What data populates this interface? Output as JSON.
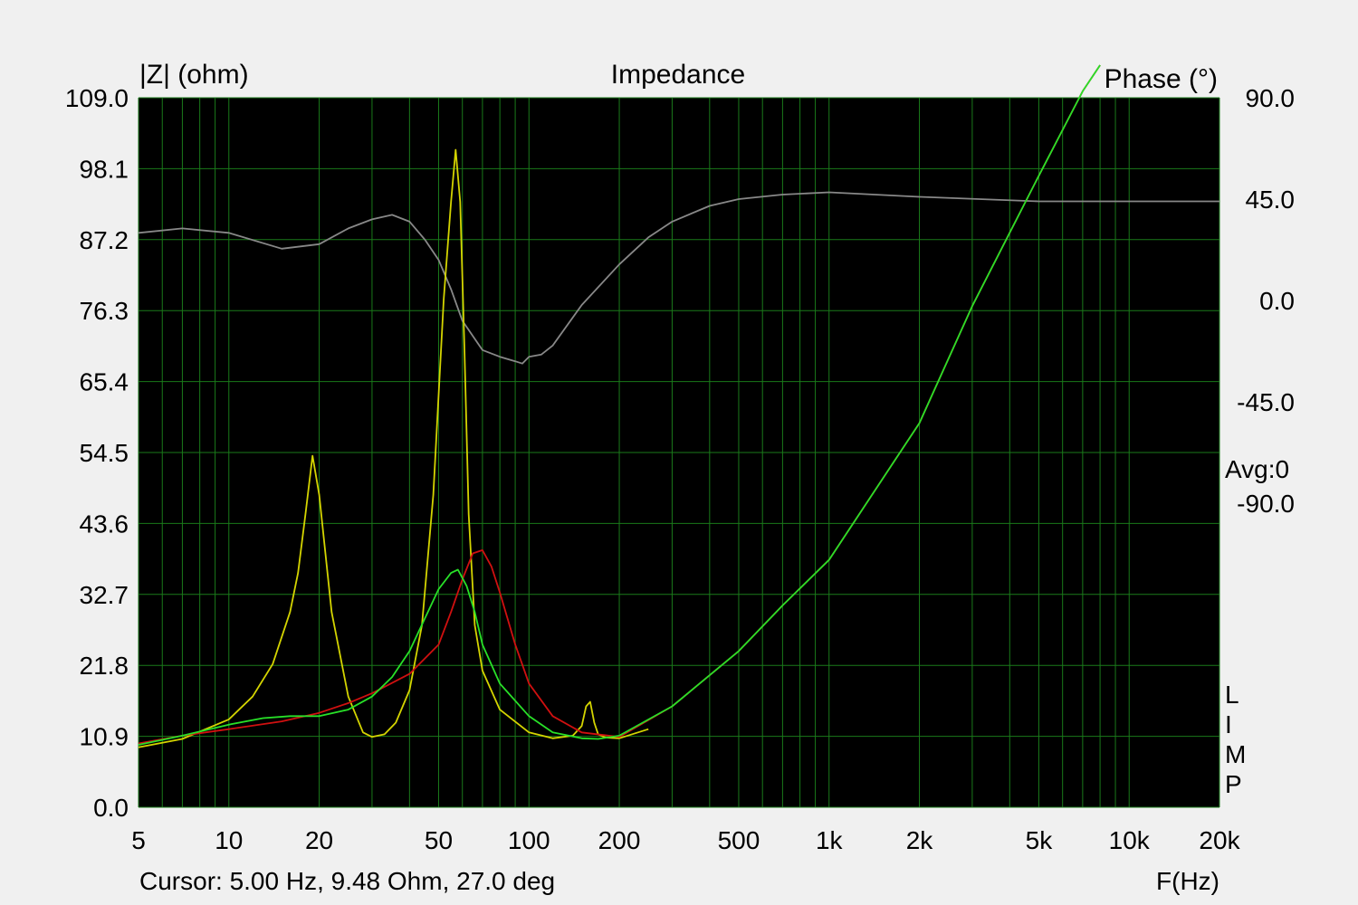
{
  "chart_data": {
    "type": "line",
    "title": "Impedance",
    "ylabel": "|Z| (ohm)",
    "ylabel_right": "Phase (°)",
    "xlabel": "F(Hz)",
    "x_scale": "log",
    "xlim": [
      5,
      20000
    ],
    "ylim": [
      0,
      109
    ],
    "ylim_right": [
      -225,
      90
    ],
    "grid": true,
    "background": "#000000",
    "grid_color": "#1a7a1a",
    "x_ticks": [
      {
        "v": 5,
        "label": "5"
      },
      {
        "v": 10,
        "label": "10"
      },
      {
        "v": 20,
        "label": "20"
      },
      {
        "v": 50,
        "label": "50"
      },
      {
        "v": 100,
        "label": "100"
      },
      {
        "v": 200,
        "label": "200"
      },
      {
        "v": 500,
        "label": "500"
      },
      {
        "v": 1000,
        "label": "1k"
      },
      {
        "v": 2000,
        "label": "2k"
      },
      {
        "v": 5000,
        "label": "5k"
      },
      {
        "v": 10000,
        "label": "10k"
      },
      {
        "v": 20000,
        "label": "20k"
      }
    ],
    "y_ticks": [
      {
        "v": 0.0,
        "label": "0.0"
      },
      {
        "v": 10.9,
        "label": "10.9"
      },
      {
        "v": 21.8,
        "label": "21.8"
      },
      {
        "v": 32.7,
        "label": "32.7"
      },
      {
        "v": 43.6,
        "label": "43.6"
      },
      {
        "v": 54.5,
        "label": "54.5"
      },
      {
        "v": 65.4,
        "label": "65.4"
      },
      {
        "v": 76.3,
        "label": "76.3"
      },
      {
        "v": 87.2,
        "label": "87.2"
      },
      {
        "v": 98.1,
        "label": "98.1"
      },
      {
        "v": 109.0,
        "label": "109.0"
      }
    ],
    "y_ticks_right": [
      {
        "v": 90,
        "label": "90.0"
      },
      {
        "v": 45,
        "label": "45.0"
      },
      {
        "v": 0,
        "label": "0.0"
      },
      {
        "v": -45,
        "label": "-45.0"
      },
      {
        "v": -90,
        "label": "-90.0"
      }
    ],
    "avg_label": "Avg:0",
    "side_letters": [
      "L",
      "I",
      "M",
      "P"
    ],
    "status": "Cursor: 5.00 Hz, 9.48 Ohm, 27.0 deg",
    "series": [
      {
        "color": "#888888",
        "axis": "right",
        "x": [
          5,
          7,
          10,
          15,
          20,
          25,
          30,
          35,
          40,
          45,
          50,
          55,
          60,
          70,
          80,
          90,
          95,
          100,
          110,
          120,
          150,
          200,
          250,
          300,
          400,
          500,
          700,
          1000,
          2000,
          5000,
          10000,
          20000
        ],
        "y": [
          30,
          32,
          30,
          23,
          25,
          32,
          36,
          38,
          35,
          27,
          18,
          5,
          -9,
          -22,
          -25,
          -27,
          -28,
          -25,
          -24,
          -20,
          -2,
          16,
          28,
          35,
          42,
          45,
          47,
          48,
          46,
          44,
          44,
          44
        ]
      },
      {
        "color": "#d4d400",
        "axis": "left",
        "x": [
          5,
          7,
          10,
          12,
          14,
          16,
          17,
          18,
          19,
          20,
          22,
          25,
          28,
          30,
          33,
          36,
          40,
          44,
          48,
          52,
          55,
          57,
          59,
          61,
          63,
          66,
          70,
          80,
          100,
          120,
          140,
          150,
          155,
          160,
          165,
          170,
          180,
          200,
          250
        ],
        "y": [
          9.2,
          10.5,
          13.5,
          17,
          22,
          30,
          36,
          45,
          54,
          48,
          30,
          17,
          11.5,
          10.8,
          11.2,
          13,
          18,
          28,
          48,
          78,
          93,
          101,
          93,
          70,
          45,
          28,
          21,
          15,
          11.5,
          10.6,
          11,
          12.5,
          15.5,
          16.2,
          13,
          11.2,
          10.7,
          10.6,
          12
        ]
      },
      {
        "color": "#d01010",
        "axis": "left",
        "x": [
          5,
          7,
          10,
          15,
          20,
          25,
          30,
          40,
          50,
          55,
          60,
          65,
          70,
          75,
          80,
          90,
          100,
          120,
          150,
          200,
          300,
          500,
          700,
          1000,
          2000,
          3000,
          5000,
          7000,
          8000
        ],
        "y": [
          9.8,
          11,
          12,
          13.2,
          14.5,
          16,
          17.5,
          20.5,
          25,
          30,
          35,
          39,
          39.5,
          37,
          33,
          25,
          19,
          14,
          11.5,
          10.8,
          15.5,
          24,
          31,
          38,
          59,
          77,
          97,
          110,
          114
        ]
      },
      {
        "color": "#28e028",
        "axis": "left",
        "x": [
          5,
          7,
          10,
          13,
          16,
          20,
          25,
          30,
          35,
          40,
          45,
          50,
          55,
          58,
          62,
          66,
          70,
          80,
          100,
          120,
          150,
          170,
          200,
          300,
          500,
          700,
          1000,
          2000,
          3000,
          5000,
          7000,
          8000
        ],
        "y": [
          9.6,
          11,
          12.7,
          13.7,
          14,
          14,
          15,
          17,
          20,
          24,
          29,
          33.5,
          36,
          36.5,
          34,
          30,
          25,
          19,
          14,
          11.5,
          10.6,
          10.5,
          11,
          15.5,
          24,
          31,
          38,
          59,
          77,
          97,
          110,
          114
        ]
      }
    ]
  }
}
